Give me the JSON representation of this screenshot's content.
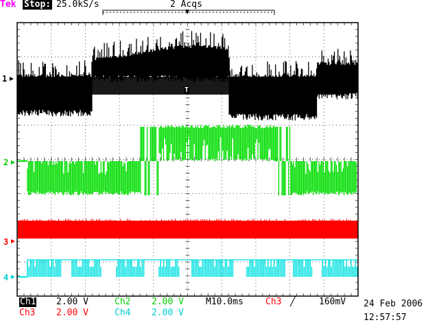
{
  "header": {
    "brand": "Tek",
    "state": "Stop:",
    "sample_rate": "25.0kS/s",
    "acquisitions": "2 Acqs"
  },
  "channels": [
    {
      "id": "Ch1",
      "marker": "1",
      "scale": "2.00 V",
      "color": "#000000"
    },
    {
      "id": "Ch2",
      "marker": "2",
      "scale": "2.00 V",
      "color": "#00dd00"
    },
    {
      "id": "Ch3",
      "marker": "3",
      "scale": "2.00 V",
      "color": "#ff0000"
    },
    {
      "id": "Ch4",
      "marker": "4",
      "scale": "2.00 V",
      "color": "#00e0e0"
    }
  ],
  "timebase": "M10.0ms",
  "trigger": {
    "source": "Ch3",
    "slope_icon": "rising-edge-icon",
    "level": "160mV",
    "marker": "T"
  },
  "datetime": {
    "date": "24 Feb 2006",
    "time": "12:57:57"
  },
  "colors": {
    "brand": "#ff00ff",
    "grid": "#555555",
    "trace1": "#000000",
    "trace2": "#00dd00",
    "trace3": "#ff0000",
    "trace4": "#00e0e0"
  }
}
